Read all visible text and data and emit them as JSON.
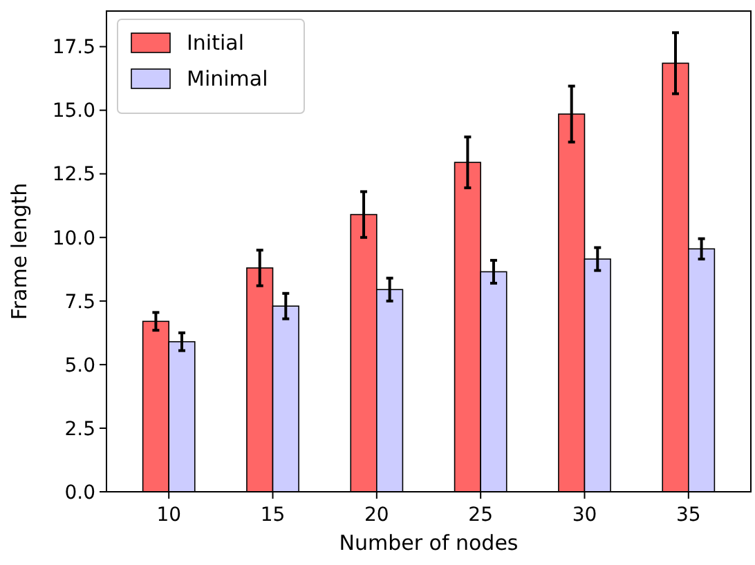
{
  "chart_data": {
    "type": "bar",
    "xlabel": "Number of nodes",
    "ylabel": "Frame length",
    "categories": [
      "10",
      "15",
      "20",
      "25",
      "30",
      "35"
    ],
    "series": [
      {
        "name": "Initial",
        "color": "#ff6666",
        "values": [
          6.7,
          8.8,
          10.9,
          12.95,
          14.85,
          16.85
        ],
        "errors": [
          0.35,
          0.7,
          0.9,
          1.0,
          1.1,
          1.2
        ]
      },
      {
        "name": "Minimal",
        "color": "#ccccff",
        "values": [
          5.9,
          7.3,
          7.95,
          8.65,
          9.15,
          9.55
        ],
        "errors": [
          0.35,
          0.5,
          0.45,
          0.45,
          0.45,
          0.4
        ]
      }
    ],
    "ylim": [
      0,
      18.9
    ],
    "yticks": [
      {
        "value": 0,
        "label": "0.0"
      },
      {
        "value": 2.5,
        "label": "2.5"
      },
      {
        "value": 5,
        "label": "5.0"
      },
      {
        "value": 7.5,
        "label": "7.5"
      },
      {
        "value": 10,
        "label": "10.0"
      },
      {
        "value": 12.5,
        "label": "12.5"
      },
      {
        "value": 15,
        "label": "15.0"
      },
      {
        "value": 17.5,
        "label": "17.5"
      }
    ],
    "legend": "top left",
    "grid": false
  }
}
